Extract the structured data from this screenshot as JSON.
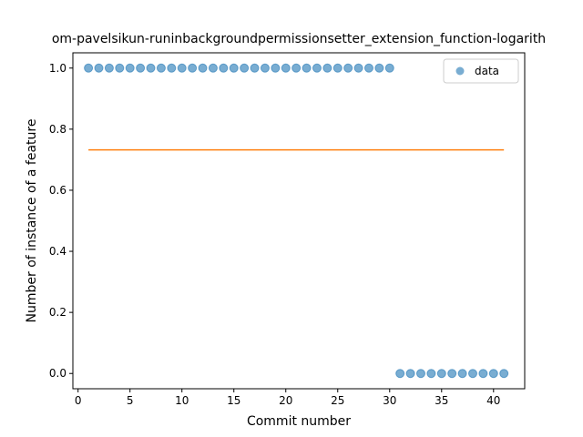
{
  "chart_data": {
    "type": "scatter",
    "title": "om-pavelsikun-runinbackgroundpermissionsetter_extension_function-logarith",
    "xlabel": "Commit number",
    "ylabel": "Number of instance of a feature",
    "xlim": [
      -0.5,
      43.0
    ],
    "ylim": [
      -0.05,
      1.05
    ],
    "xticks": [
      0,
      5,
      10,
      15,
      20,
      25,
      30,
      35,
      40
    ],
    "yticks": [
      0.0,
      0.2,
      0.4,
      0.6,
      0.8,
      1.0
    ],
    "ytick_labels": [
      "0.0",
      "0.2",
      "0.4",
      "0.6",
      "0.8",
      "1.0"
    ],
    "grid": false,
    "legend_position": "top-right",
    "series": [
      {
        "name": "data",
        "kind": "scatter",
        "color": "#1f77b4",
        "x": [
          1,
          2,
          3,
          4,
          5,
          6,
          7,
          8,
          9,
          10,
          11,
          12,
          13,
          14,
          15,
          16,
          17,
          18,
          19,
          20,
          21,
          22,
          23,
          24,
          25,
          26,
          27,
          28,
          29,
          30,
          31,
          32,
          33,
          34,
          35,
          36,
          37,
          38,
          39,
          40,
          41
        ],
        "y": [
          1,
          1,
          1,
          1,
          1,
          1,
          1,
          1,
          1,
          1,
          1,
          1,
          1,
          1,
          1,
          1,
          1,
          1,
          1,
          1,
          1,
          1,
          1,
          1,
          1,
          1,
          1,
          1,
          1,
          1,
          0,
          0,
          0,
          0,
          0,
          0,
          0,
          0,
          0,
          0,
          0
        ]
      },
      {
        "kind": "line",
        "color": "#ff7f0e",
        "x": [
          1,
          41
        ],
        "y": [
          0.732,
          0.732
        ]
      }
    ]
  }
}
